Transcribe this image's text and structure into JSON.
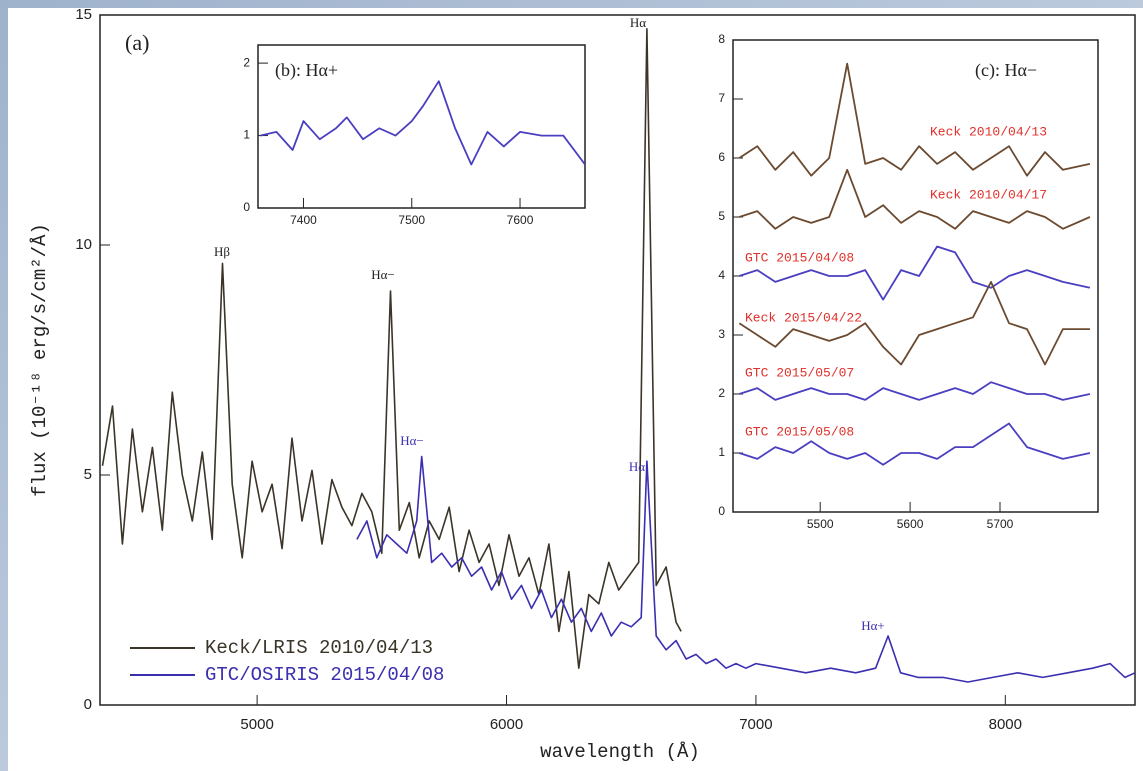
{
  "chart_data": [
    {
      "type": "line",
      "title": "(a)",
      "xlabel": "wavelength (Å)",
      "ylabel": "flux (10⁻¹⁸ erg/s/cm²/Å)",
      "xlim": [
        4370,
        8520
      ],
      "ylim": [
        0,
        15
      ],
      "xticks": [
        5000,
        6000,
        7000,
        8000
      ],
      "yticks": [
        0,
        5,
        10,
        15
      ],
      "legend": "lower left",
      "annotations": [
        "Hβ",
        "Hα−",
        "Hα−",
        "Hα",
        "Hα",
        "Hα+"
      ],
      "series": [
        {
          "name": "Keck/LRIS 2010/04/13",
          "color": "#3b3428",
          "x": [
            4380,
            4420,
            4460,
            4500,
            4540,
            4580,
            4620,
            4660,
            4700,
            4740,
            4780,
            4820,
            4861,
            4900,
            4940,
            4980,
            5020,
            5060,
            5100,
            5140,
            5180,
            5220,
            5260,
            5300,
            5340,
            5380,
            5420,
            5460,
            5500,
            5535,
            5570,
            5610,
            5650,
            5690,
            5730,
            5770,
            5810,
            5850,
            5890,
            5930,
            5970,
            6010,
            6050,
            6090,
            6130,
            6170,
            6210,
            6250,
            6290,
            6330,
            6370,
            6410,
            6450,
            6490,
            6530,
            6563,
            6600,
            6640,
            6680,
            6700
          ],
          "values": [
            5.2,
            6.5,
            3.5,
            6.0,
            4.2,
            5.6,
            3.8,
            6.8,
            5.0,
            4.0,
            5.5,
            3.6,
            9.6,
            4.8,
            3.2,
            5.3,
            4.2,
            4.8,
            3.4,
            5.8,
            4.0,
            5.1,
            3.5,
            4.9,
            4.3,
            3.9,
            4.6,
            4.2,
            3.3,
            9.0,
            3.8,
            4.4,
            3.2,
            4.0,
            3.6,
            4.3,
            2.9,
            3.8,
            3.1,
            3.5,
            2.6,
            3.7,
            2.8,
            3.2,
            2.4,
            3.5,
            1.6,
            2.9,
            0.8,
            2.4,
            2.2,
            3.1,
            2.5,
            2.8,
            3.1,
            14.7,
            2.6,
            3.0,
            1.8,
            1.6
          ]
        },
        {
          "name": "GTC/OSIRIS 2015/04/08",
          "color": "#3a2fb0",
          "x": [
            5400,
            5440,
            5480,
            5520,
            5560,
            5600,
            5640,
            5660,
            5700,
            5740,
            5780,
            5820,
            5860,
            5900,
            5940,
            5980,
            6020,
            6060,
            6100,
            6140,
            6180,
            6220,
            6260,
            6300,
            6340,
            6380,
            6420,
            6460,
            6500,
            6540,
            6563,
            6600,
            6640,
            6680,
            6720,
            6760,
            6800,
            6840,
            6880,
            6920,
            6960,
            7000,
            7100,
            7200,
            7300,
            7400,
            7480,
            7530,
            7580,
            7650,
            7750,
            7850,
            7950,
            8050,
            8150,
            8250,
            8350,
            8420,
            8480,
            8520
          ],
          "values": [
            3.6,
            4.0,
            3.2,
            3.7,
            3.5,
            3.3,
            4.0,
            5.4,
            3.1,
            3.3,
            3.0,
            3.2,
            2.8,
            3.0,
            2.5,
            2.9,
            2.3,
            2.6,
            2.1,
            2.5,
            1.9,
            2.3,
            1.8,
            2.1,
            1.6,
            2.0,
            1.5,
            1.8,
            1.7,
            1.9,
            5.3,
            1.5,
            1.2,
            1.4,
            1.0,
            1.1,
            0.9,
            1.0,
            0.8,
            0.9,
            0.8,
            0.9,
            0.8,
            0.7,
            0.8,
            0.7,
            0.8,
            1.5,
            0.7,
            0.6,
            0.6,
            0.5,
            0.6,
            0.7,
            0.6,
            0.7,
            0.8,
            0.9,
            0.6,
            0.7
          ]
        }
      ]
    },
    {
      "type": "line",
      "title": "(b): Hα+",
      "xlim": [
        7358,
        7660
      ],
      "ylim": [
        0,
        2.25
      ],
      "xticks": [
        7400,
        7500,
        7600
      ],
      "yticks": [
        0,
        1,
        2
      ],
      "x": [
        7360,
        7375,
        7390,
        7400,
        7415,
        7430,
        7440,
        7455,
        7470,
        7485,
        7500,
        7510,
        7525,
        7540,
        7555,
        7570,
        7585,
        7600,
        7620,
        7640,
        7660
      ],
      "series": [
        {
          "color": "#4a3fc0",
          "values": [
            1.0,
            1.05,
            0.8,
            1.2,
            0.95,
            1.1,
            1.25,
            0.95,
            1.1,
            1.0,
            1.2,
            1.4,
            1.75,
            1.1,
            0.6,
            1.05,
            0.85,
            1.05,
            1.0,
            1.0,
            0.6
          ]
        }
      ]
    },
    {
      "type": "line",
      "title": "(c): Hα−",
      "xlim": [
        5403,
        5809
      ],
      "ylim": [
        0,
        8
      ],
      "xticks": [
        5500,
        5600,
        5700
      ],
      "yticks": [
        0,
        1,
        2,
        3,
        4,
        5,
        6,
        7,
        8
      ],
      "label_color": "#e0302a",
      "x": [
        5410,
        5430,
        5450,
        5470,
        5490,
        5510,
        5530,
        5550,
        5570,
        5590,
        5610,
        5630,
        5650,
        5670,
        5690,
        5710,
        5730,
        5750,
        5770,
        5800
      ],
      "series": [
        {
          "name": "Keck 2010/04/13",
          "color": "#6b4a30",
          "values": [
            6.0,
            6.2,
            5.8,
            6.1,
            5.7,
            6.0,
            7.6,
            5.9,
            6.0,
            5.8,
            6.2,
            5.9,
            6.1,
            5.8,
            6.0,
            6.2,
            5.7,
            6.1,
            5.8,
            5.9
          ]
        },
        {
          "name": "Keck 2010/04/17",
          "color": "#6b4a30",
          "values": [
            5.0,
            5.1,
            4.8,
            5.0,
            4.9,
            5.0,
            5.8,
            5.0,
            5.2,
            4.9,
            5.1,
            5.0,
            4.8,
            5.1,
            5.0,
            4.9,
            5.1,
            5.0,
            4.8,
            5.0
          ]
        },
        {
          "name": "GTC 2015/04/08",
          "color": "#4a3fc0",
          "values": [
            4.0,
            4.1,
            3.9,
            4.0,
            4.1,
            4.0,
            4.0,
            4.1,
            3.6,
            4.1,
            4.0,
            4.5,
            4.4,
            3.9,
            3.8,
            4.0,
            4.1,
            4.0,
            3.9,
            3.8
          ]
        },
        {
          "name": "Keck 2015/04/22",
          "color": "#6b4a30",
          "values": [
            3.2,
            3.0,
            2.8,
            3.1,
            3.0,
            2.9,
            3.0,
            3.2,
            2.8,
            2.5,
            3.0,
            3.1,
            3.2,
            3.3,
            3.9,
            3.2,
            3.1,
            2.5,
            3.1,
            3.1
          ]
        },
        {
          "name": "GTC 2015/05/07",
          "color": "#4a3fc0",
          "values": [
            2.0,
            2.1,
            1.9,
            2.0,
            2.1,
            2.0,
            2.0,
            1.9,
            2.1,
            2.0,
            1.9,
            2.0,
            2.1,
            2.0,
            2.2,
            2.1,
            2.0,
            2.0,
            1.9,
            2.0
          ]
        },
        {
          "name": "GTC 2015/05/08",
          "color": "#4a3fc0",
          "values": [
            1.0,
            0.9,
            1.1,
            1.0,
            1.2,
            1.0,
            0.9,
            1.0,
            0.8,
            1.0,
            1.0,
            0.9,
            1.1,
            1.1,
            1.3,
            1.5,
            1.1,
            1.0,
            0.9,
            1.0
          ]
        }
      ]
    }
  ]
}
